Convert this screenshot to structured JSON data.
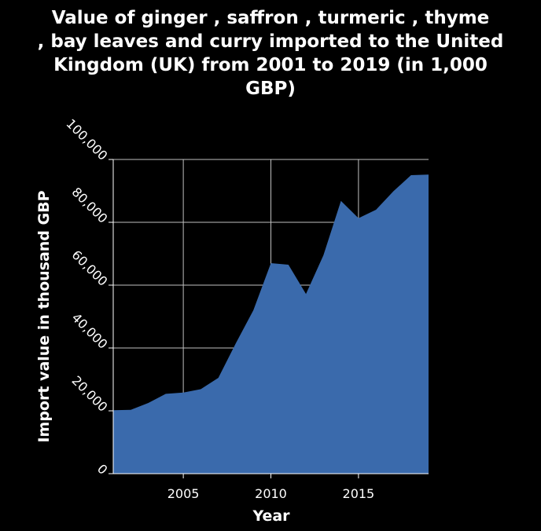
{
  "chart_data": {
    "type": "area",
    "title_lines": [
      "Value of ginger , saffron , turmeric , thyme",
      ", bay leaves and curry imported to the United",
      "Kingdom (UK) from 2001 to 2019 (in 1,000",
      "GBP)"
    ],
    "xlabel": "Year",
    "ylabel": "Import value in thousand GBP",
    "xlim": [
      2001,
      2019
    ],
    "ylim": [
      0,
      100000
    ],
    "x_ticks": [
      2005,
      2010,
      2015
    ],
    "x_tick_labels": [
      "2005",
      "2010",
      "2015"
    ],
    "y_ticks": [
      0,
      20000,
      40000,
      60000,
      80000,
      100000
    ],
    "y_tick_labels": [
      "0",
      "20,000",
      "40,000",
      "60,000",
      "80,000",
      "100,000"
    ],
    "grid": true,
    "colors": {
      "background": "#000000",
      "area": "#3a6aac",
      "grid": "#c0c0c0",
      "text": "#ffffff"
    },
    "x": [
      2001,
      2002,
      2003,
      2004,
      2005,
      2006,
      2007,
      2008,
      2009,
      2010,
      2011,
      2012,
      2013,
      2014,
      2015,
      2016,
      2017,
      2018,
      2019
    ],
    "values": [
      20200,
      20300,
      22500,
      25400,
      25800,
      26900,
      30500,
      41500,
      52000,
      67000,
      66500,
      57200,
      69500,
      86800,
      81300,
      84000,
      89900,
      95000,
      95200
    ]
  }
}
